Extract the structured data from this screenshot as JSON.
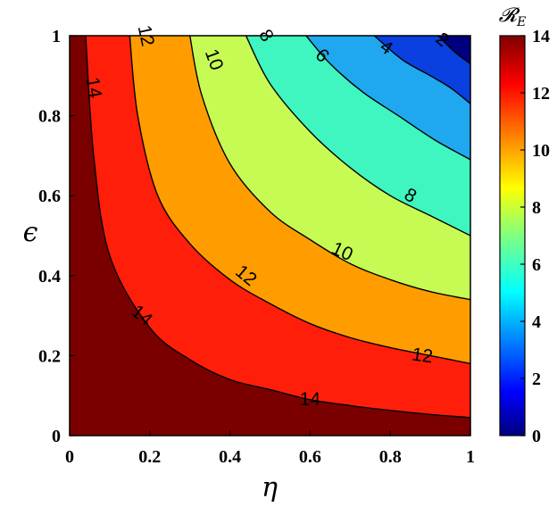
{
  "chart_data": {
    "type": "contour",
    "xlabel": "η",
    "ylabel": "ϵ",
    "xlim": [
      0,
      1
    ],
    "ylim": [
      0,
      1
    ],
    "x_ticks": [
      "0",
      "0.2",
      "0.4",
      "0.6",
      "0.8",
      "1"
    ],
    "y_ticks": [
      "0",
      "0.2",
      "0.4",
      "0.6",
      "0.8",
      "1"
    ],
    "colorbar": {
      "label": "𝓡_E",
      "range": [
        0,
        14
      ],
      "ticks": [
        "0",
        "2",
        "4",
        "6",
        "8",
        "10",
        "12",
        "14"
      ]
    },
    "contour_levels": [
      2,
      4,
      6,
      8,
      10,
      12,
      14
    ],
    "contours": [
      {
        "level": 14,
        "points": [
          [
            0.04,
            1.0
          ],
          [
            0.06,
            0.7
          ],
          [
            0.1,
            0.45
          ],
          [
            0.2,
            0.27
          ],
          [
            0.3,
            0.19
          ],
          [
            0.4,
            0.14
          ],
          [
            0.5,
            0.115
          ],
          [
            0.6,
            0.09
          ],
          [
            0.7,
            0.075
          ],
          [
            0.8,
            0.063
          ],
          [
            0.9,
            0.053
          ],
          [
            1.0,
            0.045
          ]
        ]
      },
      {
        "level": 12,
        "points": [
          [
            0.15,
            1.0
          ],
          [
            0.17,
            0.8
          ],
          [
            0.22,
            0.6
          ],
          [
            0.3,
            0.48
          ],
          [
            0.4,
            0.39
          ],
          [
            0.5,
            0.33
          ],
          [
            0.6,
            0.28
          ],
          [
            0.7,
            0.245
          ],
          [
            0.8,
            0.22
          ],
          [
            0.9,
            0.2
          ],
          [
            1.0,
            0.18
          ]
        ]
      },
      {
        "level": 10,
        "points": [
          [
            0.3,
            1.0
          ],
          [
            0.33,
            0.85
          ],
          [
            0.4,
            0.68
          ],
          [
            0.5,
            0.56
          ],
          [
            0.6,
            0.49
          ],
          [
            0.7,
            0.43
          ],
          [
            0.8,
            0.39
          ],
          [
            0.9,
            0.36
          ],
          [
            1.0,
            0.34
          ]
        ]
      },
      {
        "level": 8,
        "points": [
          [
            0.44,
            1.0
          ],
          [
            0.5,
            0.88
          ],
          [
            0.6,
            0.76
          ],
          [
            0.7,
            0.67
          ],
          [
            0.8,
            0.6
          ],
          [
            0.9,
            0.55
          ],
          [
            1.0,
            0.5
          ]
        ]
      },
      {
        "level": 6,
        "points": [
          [
            0.59,
            1.0
          ],
          [
            0.65,
            0.93
          ],
          [
            0.73,
            0.86
          ],
          [
            0.82,
            0.8
          ],
          [
            0.91,
            0.74
          ],
          [
            1.0,
            0.69
          ]
        ]
      },
      {
        "level": 4,
        "points": [
          [
            0.76,
            1.0
          ],
          [
            0.83,
            0.94
          ],
          [
            0.9,
            0.9
          ],
          [
            0.95,
            0.87
          ],
          [
            1.0,
            0.83
          ]
        ]
      },
      {
        "level": 2,
        "points": [
          [
            0.92,
            1.0
          ],
          [
            0.96,
            0.96
          ],
          [
            1.0,
            0.93
          ]
        ]
      }
    ],
    "contour_labels": [
      {
        "text": "14",
        "at": [
          0.06,
          0.87
        ],
        "rotate": 80
      },
      {
        "text": "14",
        "at": [
          0.18,
          0.3
        ],
        "rotate": 40
      },
      {
        "text": "14",
        "at": [
          0.6,
          0.09
        ],
        "rotate": 0
      },
      {
        "text": "12",
        "at": [
          0.19,
          1.0
        ],
        "rotate": 78
      },
      {
        "text": "12",
        "at": [
          0.44,
          0.4
        ],
        "rotate": 40
      },
      {
        "text": "12",
        "at": [
          0.88,
          0.2
        ],
        "rotate": 8
      },
      {
        "text": "10",
        "at": [
          0.36,
          0.94
        ],
        "rotate": 70
      },
      {
        "text": "10",
        "at": [
          0.68,
          0.46
        ],
        "rotate": 25
      },
      {
        "text": "8",
        "at": [
          0.49,
          1.0
        ],
        "rotate": 60
      },
      {
        "text": "8",
        "at": [
          0.85,
          0.6
        ],
        "rotate": 30
      },
      {
        "text": "6",
        "at": [
          0.63,
          0.95
        ],
        "rotate": 45
      },
      {
        "text": "4",
        "at": [
          0.79,
          0.97
        ],
        "rotate": 35
      },
      {
        "text": "2",
        "at": [
          0.93,
          0.99
        ],
        "rotate": 40
      }
    ],
    "band_colors": {
      "b_0_2": "#00007f",
      "b_2_4": "#0a3fe0",
      "b_4_6": "#1fa8f0",
      "b_6_8": "#3ff5c0",
      "b_8_10": "#c6fb53",
      "b_10_12": "#ff9d00",
      "b_12_14": "#ff1e0a",
      "b_14_plus": "#7a0000"
    }
  }
}
